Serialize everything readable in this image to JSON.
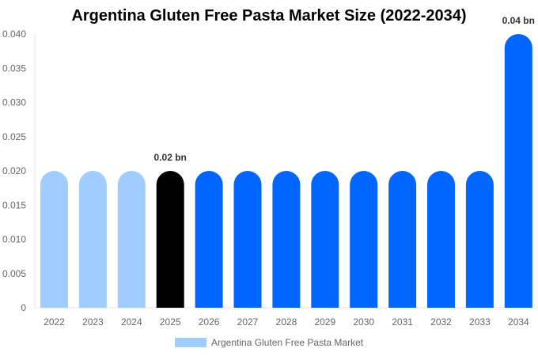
{
  "chart_data": {
    "type": "bar",
    "title": "Argentina Gluten Free Pasta Market Size (2022-2034)",
    "categories": [
      "2022",
      "2023",
      "2024",
      "2025",
      "2026",
      "2027",
      "2028",
      "2029",
      "2030",
      "2031",
      "2032",
      "2033",
      "2034"
    ],
    "series": [
      {
        "name": "Argentina Gluten Free Pasta Market",
        "values": [
          0.02,
          0.02,
          0.02,
          0.02,
          0.02,
          0.02,
          0.02,
          0.02,
          0.02,
          0.02,
          0.02,
          0.02,
          0.04
        ]
      }
    ],
    "bar_colors": [
      "#a0cdfd",
      "#a0cdfd",
      "#a0cdfd",
      "#000000",
      "#0066ff",
      "#0066ff",
      "#0066ff",
      "#0066ff",
      "#0066ff",
      "#0066ff",
      "#0066ff",
      "#0066ff",
      "#0066ff"
    ],
    "data_labels": [
      {
        "category": "2025",
        "text": "0.02 bn"
      },
      {
        "category": "2034",
        "text": "0.04 bn"
      }
    ],
    "yticks": [
      "0",
      "0.005",
      "0.010",
      "0.015",
      "0.020",
      "0.025",
      "0.030",
      "0.035",
      "0.040"
    ],
    "ylim": [
      0,
      0.04
    ],
    "xlabel": "",
    "ylabel": "",
    "legend": "bottom",
    "grid": false
  }
}
